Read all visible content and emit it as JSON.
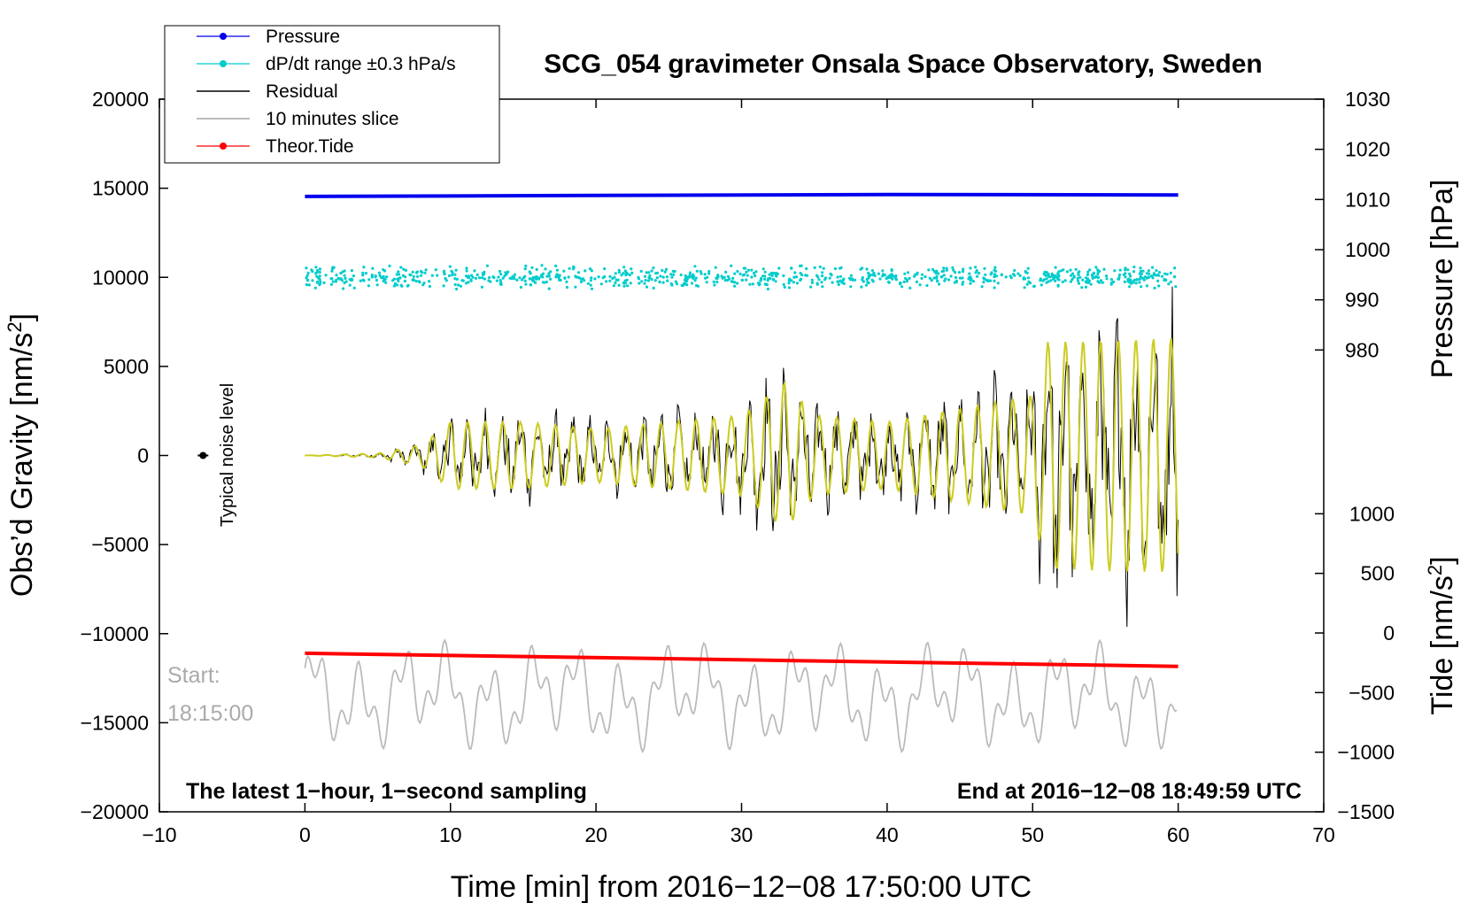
{
  "chart_data": {
    "type": "line",
    "title": "SCG_054 gravimeter Onsala Space Observatory, Sweden",
    "xlabel": "Time [min] from 2016−12−08 17:50:00 UTC",
    "ylabel_left": "Obs’d Gravity [nm/s",
    "ylabel_left_sup": "2",
    "ylabel_left_end": "]",
    "ylabel_pressure": "Pressure [hPa]",
    "ylabel_tide": "Tide [nm/s",
    "ylabel_tide_sup": "2",
    "ylabel_tide_end": "]",
    "xlim": [
      -10,
      70
    ],
    "ylim": [
      -20000,
      20000
    ],
    "pressure_lim": [
      970,
      1030
    ],
    "tide_lim": [
      -1500,
      1500
    ],
    "xticks": [
      -10,
      0,
      10,
      20,
      30,
      40,
      50,
      60,
      70
    ],
    "xtick_labels": [
      "−10",
      "0",
      "10",
      "20",
      "30",
      "40",
      "50",
      "60",
      "70"
    ],
    "yticks": [
      20000,
      15000,
      10000,
      5000,
      0,
      -5000,
      -10000,
      -15000,
      -20000
    ],
    "ytick_labels": [
      "20000",
      "15000",
      "10000",
      "5000",
      "0",
      "−5000",
      "−10000",
      "−15000",
      "−20000"
    ],
    "pressure_ticks": [
      1030,
      1020,
      1010,
      1000,
      990,
      980
    ],
    "pressure_tick_labels": [
      "1030",
      "1020",
      "1010",
      "1000",
      "990",
      "980"
    ],
    "tide_ticks": [
      1000,
      500,
      0,
      -500,
      -1000,
      -1500
    ],
    "tide_tick_labels": [
      "1000",
      "500",
      "0",
      "−500",
      "−1000",
      "−1500"
    ],
    "legend": [
      {
        "label": "Pressure",
        "color": "#0000ee",
        "marker": true
      },
      {
        "label": "dP/dt range ±0.3 hPa/s",
        "color": "#00cccc",
        "marker": true
      },
      {
        "label": "Residual",
        "color": "#000000",
        "marker": false
      },
      {
        "label": "10 minutes slice",
        "color": "#bbbbbb",
        "marker": false
      },
      {
        "label": "Theor.Tide",
        "color": "#ff0000",
        "marker": true
      }
    ],
    "series": [
      {
        "name": "Pressure",
        "axis": "pressure",
        "color": "#0000ee",
        "x": [
          0,
          20,
          40,
          60
        ],
        "values": [
          1010.6,
          1010.8,
          1011.0,
          1010.9
        ]
      },
      {
        "name": "dP/dt range ±0.3 hPa/s",
        "axis": "gravity_level",
        "color": "#00cccc",
        "x_range": [
          0,
          60
        ],
        "center": 10000,
        "spread": 700
      },
      {
        "name": "Residual",
        "axis": "gravity",
        "color": "#000000",
        "envelope_x": [
          0,
          5,
          8,
          10,
          15,
          20,
          25,
          30,
          33,
          35,
          40,
          45,
          50,
          51,
          60
        ],
        "envelope_amp": [
          0,
          150,
          800,
          2500,
          2500,
          2000,
          2500,
          3000,
          5500,
          3000,
          2500,
          3500,
          4500,
          8500,
          8800
        ]
      },
      {
        "name": "Filtered residual",
        "axis": "gravity",
        "color": "#cccc22"
      },
      {
        "name": "10 minutes slice",
        "axis": "gravity",
        "color": "#bbbbbb",
        "x_range": [
          0,
          60
        ],
        "center": -13500,
        "amplitude": 3000
      },
      {
        "name": "Theor.Tide",
        "axis": "tide",
        "color": "#ff0000",
        "x": [
          0,
          60
        ],
        "values": [
          -170,
          -280
        ]
      }
    ],
    "noise_marker": {
      "x": -7,
      "y": 0,
      "label": "Typical noise level"
    },
    "annotations": {
      "left_note": "The latest 1−hour, 1−second sampling",
      "right_note": "End at 2016−12−08 18:49:59 UTC",
      "start_label": "Start:",
      "start_time": "18:15:00"
    }
  }
}
